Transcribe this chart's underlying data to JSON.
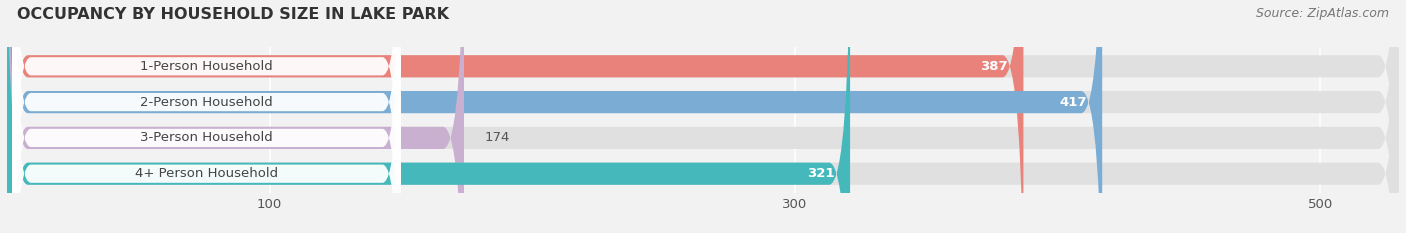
{
  "title": "OCCUPANCY BY HOUSEHOLD SIZE IN LAKE PARK",
  "source": "Source: ZipAtlas.com",
  "categories": [
    "1-Person Household",
    "2-Person Household",
    "3-Person Household",
    "4+ Person Household"
  ],
  "values": [
    387,
    417,
    174,
    321
  ],
  "bar_colors": [
    "#e8827a",
    "#7badd4",
    "#c9afd0",
    "#45b8bc"
  ],
  "label_bg_colors": [
    "#e8827a",
    "#7badd4",
    "#c9afd0",
    "#45b8bc"
  ],
  "bar_height": 0.62,
  "xlim": [
    0,
    530
  ],
  "xticks": [
    100,
    300,
    500
  ],
  "value_inside_color": "#ffffff",
  "value_outside_color": "#555555",
  "title_fontsize": 11.5,
  "source_fontsize": 9,
  "label_fontsize": 9.5,
  "tick_fontsize": 9.5,
  "bg_color": "#f2f2f2",
  "bar_bg_color": "#e0e0e0",
  "inside_threshold": 300
}
